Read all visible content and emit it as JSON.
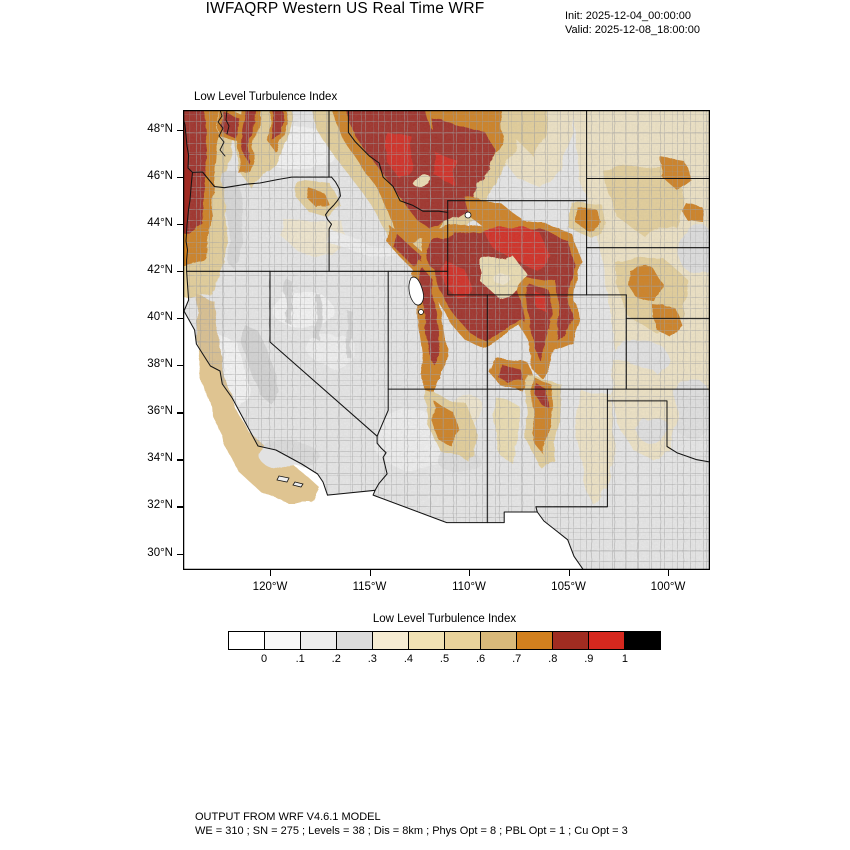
{
  "header": {
    "title": "IWFAQRP Western US Real Time WRF",
    "init_label": "Init: 2025-12-04_00:00:00",
    "valid_label": "Valid: 2025-12-08_18:00:00"
  },
  "map": {
    "field_label": "Low Level Turbulence Index",
    "y_ticks": [
      "48°N",
      "46°N",
      "44°N",
      "42°N",
      "40°N",
      "38°N",
      "36°N",
      "34°N",
      "32°N",
      "30°N"
    ],
    "x_ticks": [
      "120°W",
      "115°W",
      "110°W",
      "105°W",
      "100°W"
    ]
  },
  "colorbar": {
    "title": "Low Level Turbulence Index",
    "tick_labels": [
      "0",
      ".1",
      ".2",
      ".3",
      ".4",
      ".5",
      ".6",
      ".7",
      ".8",
      ".9",
      "1"
    ],
    "colors": [
      "#ffffff",
      "#f7f7f7",
      "#ededed",
      "#dcdcdc",
      "#f6ecd2",
      "#f1e2b4",
      "#e9d39b",
      "#d9b97a",
      "#d2801e",
      "#a02c21",
      "#d6281e",
      "#000000"
    ]
  },
  "footer": {
    "line1": "OUTPUT FROM WRF V4.6.1 MODEL",
    "line2": "WE = 310 ; SN = 275 ; Levels = 38 ; Dis = 8km ; Phys Opt = 8 ; PBL Opt = 1 ; Cu Opt = 3"
  }
}
